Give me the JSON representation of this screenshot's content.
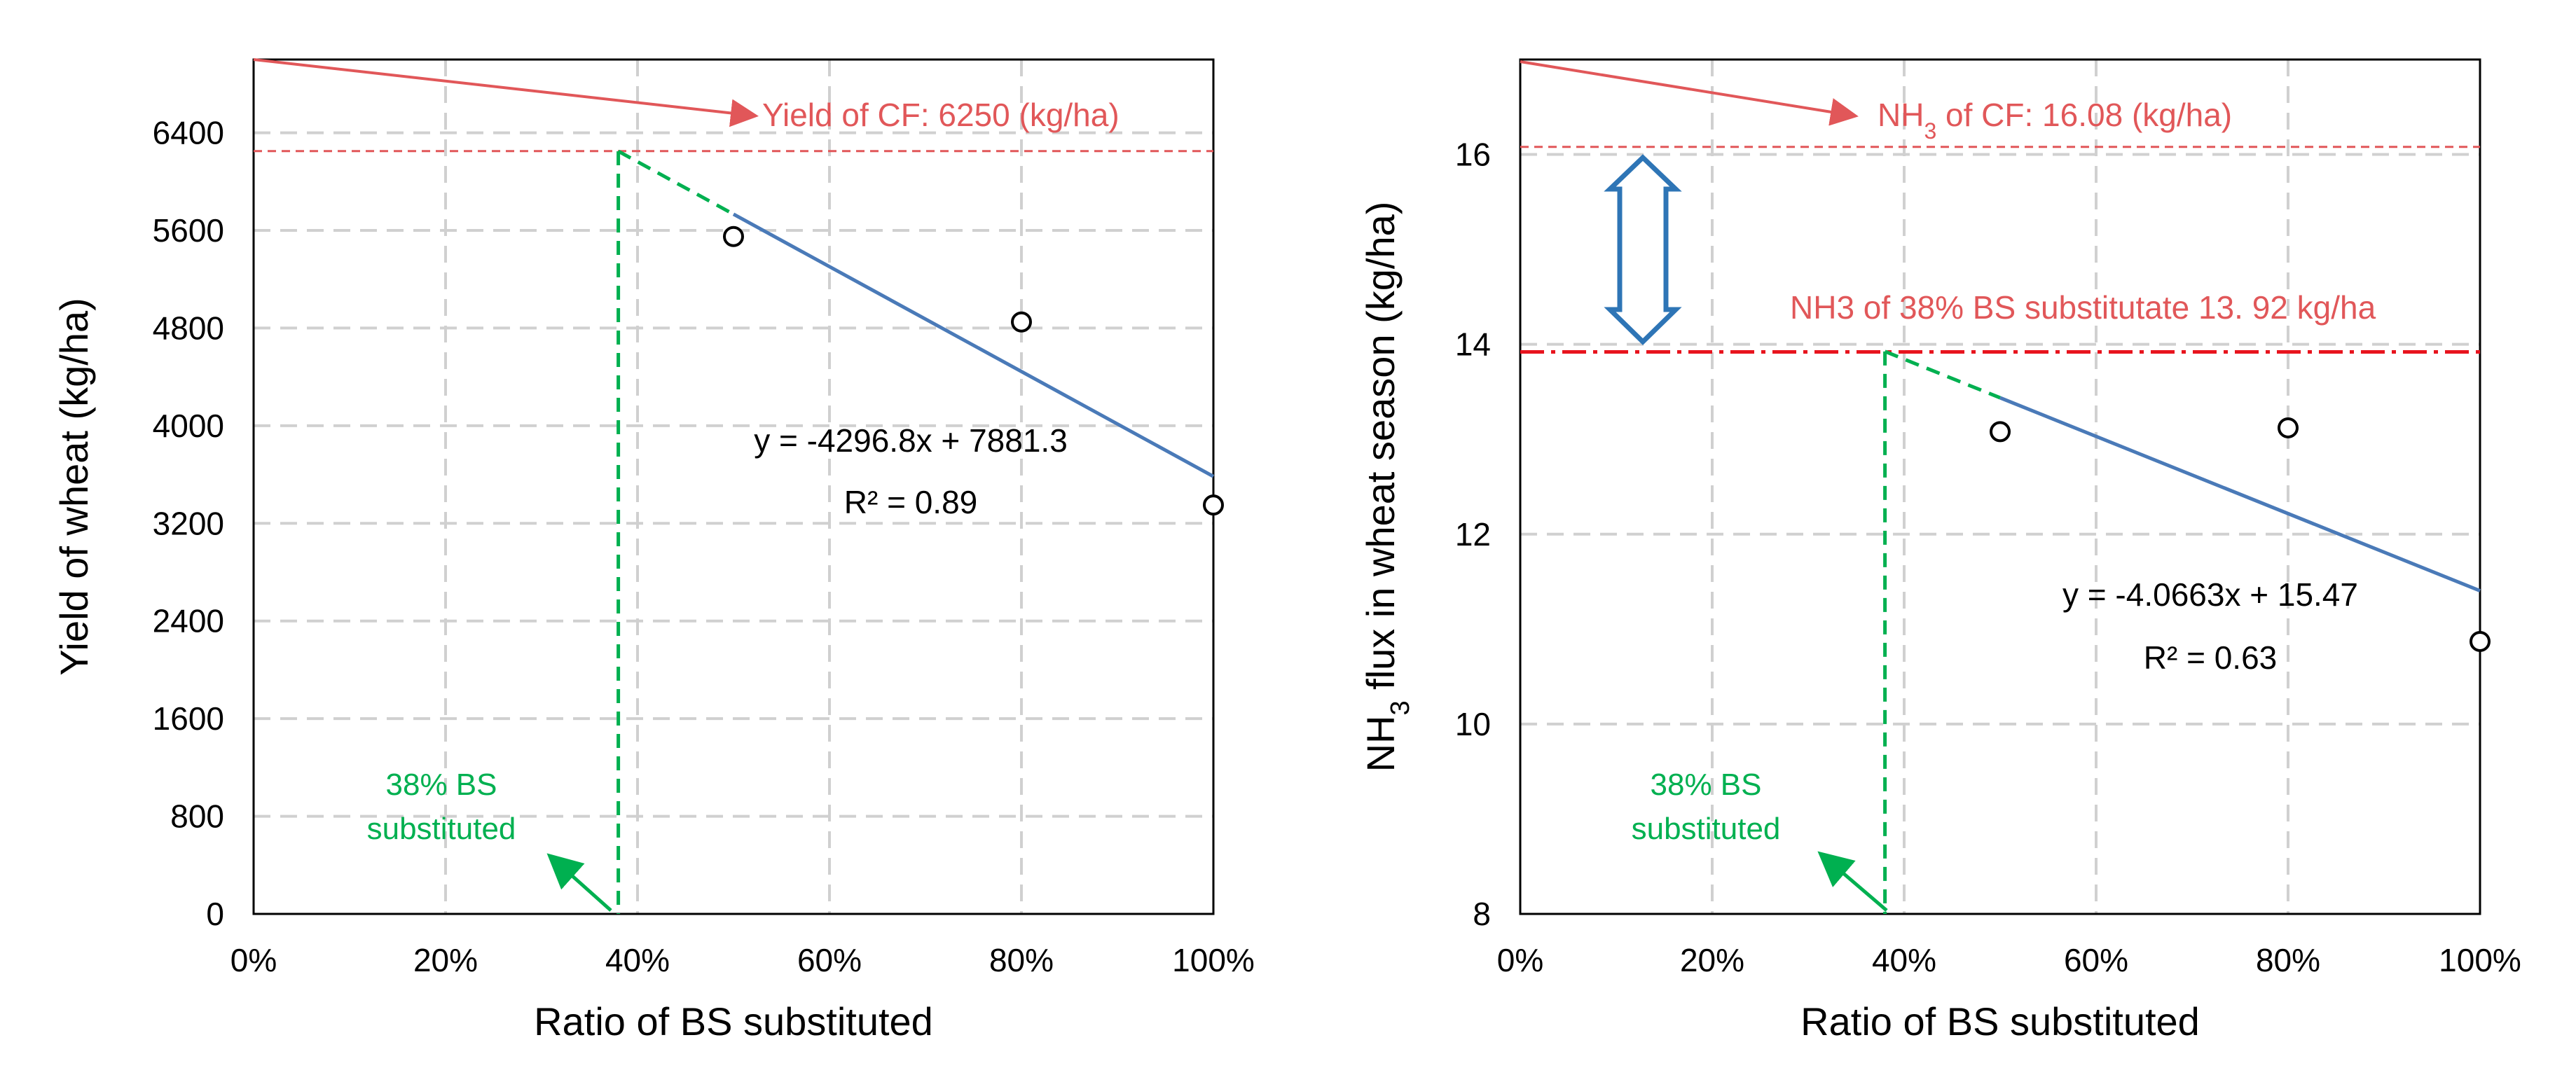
{
  "chart_data": [
    {
      "type": "scatter",
      "xlabel": "Ratio of BS substituted",
      "ylabel": "Yield of wheat (kg/ha)",
      "xlim": [
        0,
        1
      ],
      "ylim": [
        0,
        7000
      ],
      "x_ticks": [
        "0%",
        "20%",
        "40%",
        "60%",
        "80%",
        "100%"
      ],
      "y_ticks": [
        "0",
        "800",
        "1600",
        "2400",
        "3200",
        "4000",
        "4800",
        "5600",
        "6400"
      ],
      "points": [
        {
          "x": 0.5,
          "y": 5550
        },
        {
          "x": 0.8,
          "y": 4850
        },
        {
          "x": 1.0,
          "y": 3350
        }
      ],
      "trendline": {
        "slope": -4296.8,
        "intercept": 7881.3,
        "dashed_from": 0.38,
        "solid_from": 0.5,
        "to": 1.0
      },
      "equation": "y = -4296.8x + 7881.3",
      "r2": "R² = 0.89",
      "reference_line": {
        "y": 6250
      },
      "reference_label": "Yield  of CF: 6250 (kg/ha)",
      "substitution": {
        "x": 0.38,
        "label_line1": "38% BS",
        "label_line2": "substituted"
      }
    },
    {
      "type": "scatter",
      "xlabel": "Ratio of BS substituted",
      "ylabel_prefix": "NH",
      "ylabel_sub": "3",
      "ylabel_suffix": " flux in wheat season (kg/ha)",
      "xlim": [
        0,
        1
      ],
      "ylim": [
        8,
        17
      ],
      "x_ticks": [
        "0%",
        "20%",
        "40%",
        "60%",
        "80%",
        "100%"
      ],
      "y_ticks": [
        "8",
        "10",
        "12",
        "14",
        "16"
      ],
      "points": [
        {
          "x": 0.5,
          "y": 13.08
        },
        {
          "x": 0.8,
          "y": 13.12
        },
        {
          "x": 1.0,
          "y": 10.87
        }
      ],
      "trendline": {
        "slope": -4.0663,
        "intercept": 15.47,
        "dashed_from": 0.38,
        "solid_from": 0.5,
        "to": 1.0
      },
      "equation": "y = -4.0663x + 15.47",
      "r2": "R² = 0.63",
      "reference_line": {
        "y": 16.08
      },
      "reference_label_prefix": "NH",
      "reference_label_sub": "3",
      "reference_label_suffix": " of CF: 16.08 (kg/ha)",
      "reduction_line": {
        "y": 13.92
      },
      "reduction_label": "NH3 of 38% BS substitutate 13. 92 kg/ha",
      "substitution": {
        "x": 0.38,
        "label_line1": "38% BS",
        "label_line2": "substituted"
      }
    }
  ],
  "colors": {
    "red": "#e15759",
    "dark_red": "#e8141e",
    "green": "#00b050",
    "blue_trend": "#4a7ab8",
    "arrow_blue": "#2e75b6"
  }
}
